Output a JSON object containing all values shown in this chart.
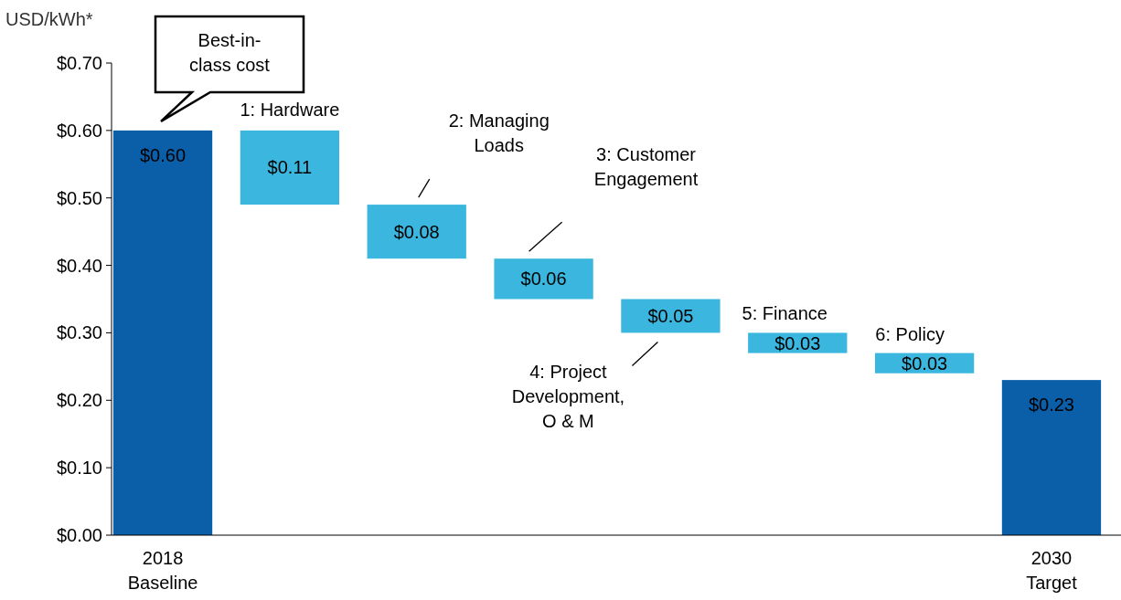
{
  "chart_data": {
    "type": "bar",
    "ylabel": "USD/kWh*",
    "categories": [
      "2018\nBaseline",
      null,
      null,
      null,
      null,
      null,
      null,
      "2030\nTarget"
    ],
    "values": [
      0.6,
      0.11,
      0.08,
      0.06,
      0.05,
      0.03,
      0.03,
      0.23
    ],
    "base": [
      0,
      0.49,
      0.41,
      0.35,
      0.3,
      0.27,
      0.24,
      0
    ],
    "colors": [
      "#0b5ea8",
      "#3bb7df",
      "#3bb7df",
      "#3bb7df",
      "#3bb7df",
      "#3bb7df",
      "#3bb7df",
      "#0b5ea8"
    ],
    "value_labels": [
      "$0.60",
      "$0.11",
      "$0.08",
      "$0.06",
      "$0.05",
      "$0.03",
      "$0.03",
      "$0.23"
    ],
    "ylim": [
      0,
      0.7
    ],
    "yticks": [
      {
        "value": 0,
        "label": "$0.00"
      },
      {
        "value": 0.1,
        "label": "$0.10"
      },
      {
        "value": 0.2,
        "label": "$0.20"
      },
      {
        "value": 0.3,
        "label": "$0.30"
      },
      {
        "value": 0.4,
        "label": "$0.40"
      },
      {
        "value": 0.5,
        "label": "$0.50"
      },
      {
        "value": 0.6,
        "label": "$0.60"
      },
      {
        "value": 0.7,
        "label": "$0.70"
      }
    ],
    "annotations": [
      "Best-in-\nclass cost",
      "1: Hardware",
      "2: Managing\nLoads",
      "3: Customer\nEngagement",
      "4: Project\nDevelopment,\nO & M",
      "5: Finance",
      "6: Policy"
    ],
    "grid": false
  }
}
